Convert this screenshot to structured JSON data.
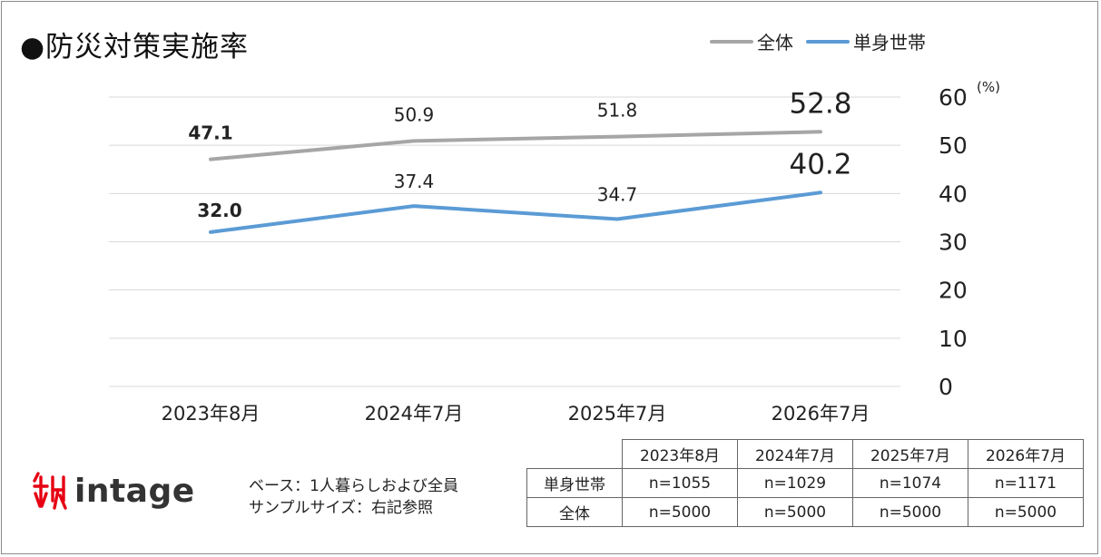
{
  "title": "●防災対策実施率",
  "legend": [
    {
      "label": "全体",
      "color": "#a6a6a6"
    },
    {
      "label": "単身世帯",
      "color": "#5b9bd5"
    }
  ],
  "chart_data": {
    "type": "line",
    "categories": [
      "2023年8月",
      "2024年7月",
      "2025年7月",
      "2026年7月"
    ],
    "series": [
      {
        "name": "全体",
        "values": [
          47.1,
          50.9,
          51.8,
          52.8
        ],
        "labels": [
          "47.1",
          "50.9",
          "51.8",
          "52.8"
        ],
        "color": "#a6a6a6"
      },
      {
        "name": "単身世帯",
        "values": [
          32.0,
          37.4,
          34.7,
          40.2
        ],
        "labels": [
          "32.0",
          "37.4",
          "34.7",
          "40.2"
        ],
        "color": "#5b9bd5"
      }
    ],
    "ylim": [
      0,
      60
    ],
    "yticks": [
      "0",
      "10",
      "20",
      "30",
      "40",
      "50",
      "60"
    ],
    "yunit": "(%)",
    "y_axis_side": "right",
    "grid": true,
    "legend_position": "top-right"
  },
  "footer": {
    "base_lines": [
      "ベース：1人暮らしおよび全員",
      "サンプルサイズ：右記参照"
    ],
    "logo_text": "intage"
  },
  "sample_table": {
    "headers": [
      "2023年8月",
      "2024年7月",
      "2025年7月",
      "2026年7月"
    ],
    "rows": [
      {
        "label": "単身世帯",
        "values": [
          "n=1055",
          "n=1029",
          "n=1074",
          "n=1171"
        ]
      },
      {
        "label": "全体",
        "values": [
          "n=5000",
          "n=5000",
          "n=5000",
          "n=5000"
        ]
      }
    ]
  }
}
